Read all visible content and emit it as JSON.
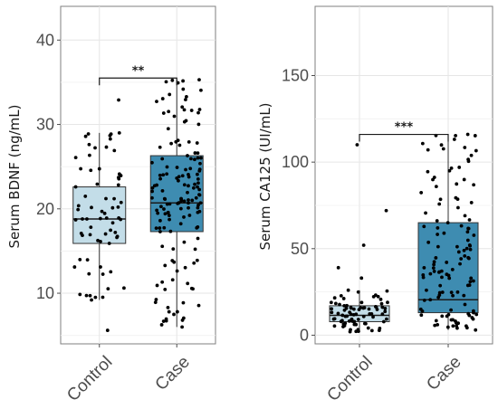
{
  "chart_data": [
    {
      "type": "boxplot",
      "ylabel": "Serum BDNF (ng/mL)",
      "ylim": [
        4,
        44
      ],
      "y_ticks": [
        10,
        20,
        30,
        40
      ],
      "grid": true,
      "categories": [
        "Control",
        "Case"
      ],
      "box_colors": [
        "#c3dde8",
        "#3e8cb1"
      ],
      "boxes": [
        {
          "category": "Control",
          "min": 9.2,
          "q1": 15.9,
          "median": 18.8,
          "q3": 22.6,
          "max": 29.0,
          "outliers": [
            5.6,
            32.9
          ]
        },
        {
          "category": "Case",
          "min": 6.0,
          "q1": 17.3,
          "median": 20.7,
          "q3": 26.3,
          "max": 35.3,
          "outliers": []
        }
      ],
      "significance": {
        "between": [
          "Control",
          "Case"
        ],
        "label": "**",
        "y": 35.5
      }
    },
    {
      "type": "boxplot",
      "ylabel": "Serum CA125 (UI/mL)",
      "ylim": [
        -5,
        190
      ],
      "y_ticks": [
        0,
        50,
        100,
        150
      ],
      "grid": true,
      "categories": [
        "Control",
        "Case"
      ],
      "box_colors": [
        "#c3dde8",
        "#3e8cb1"
      ],
      "boxes": [
        {
          "category": "Control",
          "min": 2.0,
          "q1": 7.8,
          "median": 11.5,
          "q3": 17.0,
          "max": 26.0,
          "outliers": [
            110,
            72,
            52,
            39,
            33
          ]
        },
        {
          "category": "Case",
          "min": 3.0,
          "q1": 13.0,
          "median": 20.5,
          "q3": 65.0,
          "max": 116,
          "outliers": []
        }
      ],
      "significance": {
        "between": [
          "Control",
          "Case"
        ],
        "label": "***",
        "y": 116
      }
    }
  ]
}
